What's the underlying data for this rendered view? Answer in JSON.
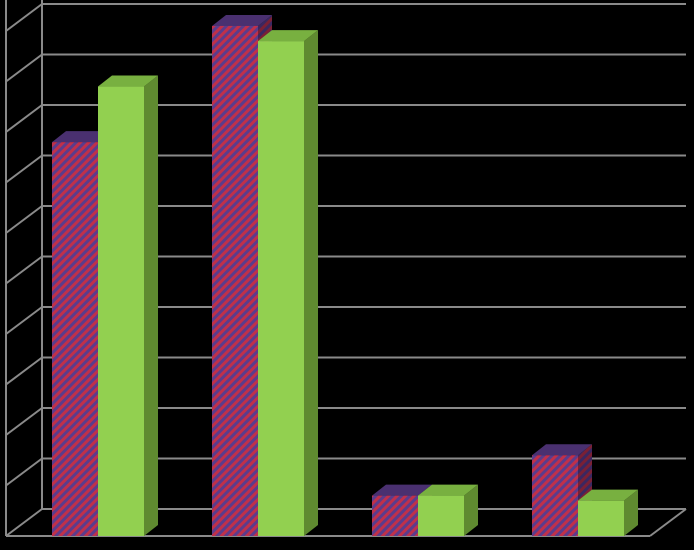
{
  "chart_data": {
    "type": "bar",
    "style": "3d-clustered-column",
    "categories": [
      "",
      "",
      "",
      ""
    ],
    "series": [
      {
        "values": [
          7.8,
          10.1,
          0.8,
          1.6
        ],
        "color": "#5b3c8c",
        "pattern": "diagonal-hatch-red"
      },
      {
        "values": [
          8.9,
          9.8,
          0.8,
          0.7
        ],
        "color": "#92d050"
      }
    ],
    "ylim": [
      0,
      10.5
    ],
    "gridlines": true,
    "legend": "none",
    "background": "#000000",
    "title": "",
    "xlabel": "",
    "ylabel": ""
  }
}
